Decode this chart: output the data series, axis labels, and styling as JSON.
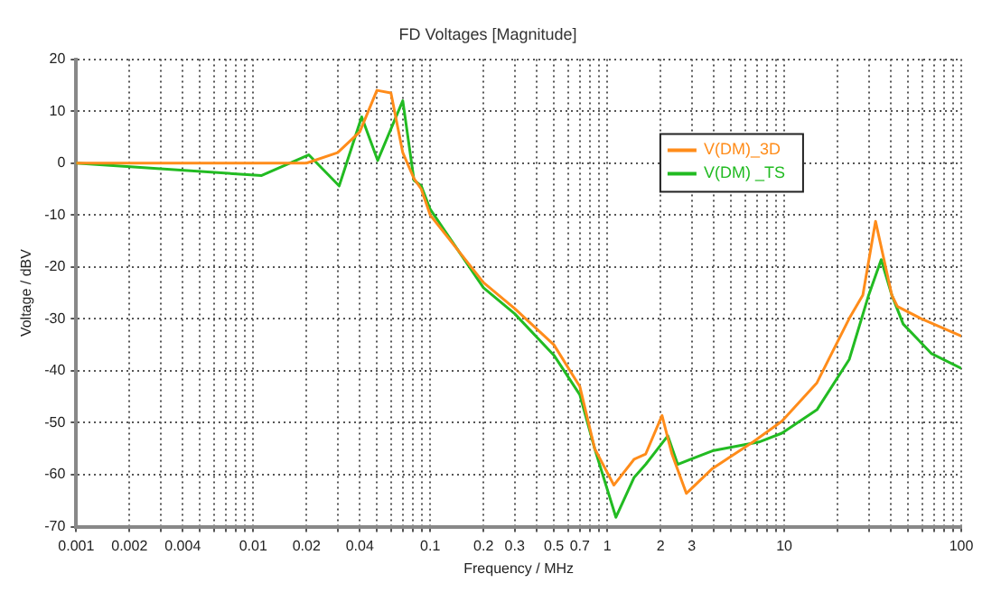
{
  "chart_data": {
    "type": "line",
    "title": "FD Voltages [Magnitude]",
    "xlabel": "Frequency / MHz",
    "ylabel": "Voltage / dBV",
    "log": "x",
    "grid": true,
    "legend": "top right",
    "marker": "none",
    "line_style": "solid",
    "xlim": [
      0.001,
      100
    ],
    "ylim": [
      -70,
      20
    ],
    "xticks": [
      0.001,
      0.002,
      {
        "value": 0.003,
        "label": null
      },
      0.004,
      {
        "value": 0.005,
        "label": null
      },
      {
        "value": 0.006,
        "label": null
      },
      {
        "value": 0.007,
        "label": null
      },
      {
        "value": 0.008,
        "label": null
      },
      {
        "value": 0.009,
        "label": null
      },
      0.01,
      0.02,
      {
        "value": 0.03,
        "label": null
      },
      0.04,
      {
        "value": 0.05,
        "label": null
      },
      {
        "value": 0.06,
        "label": null
      },
      {
        "value": 0.07,
        "label": null
      },
      {
        "value": 0.08,
        "label": null
      },
      {
        "value": 0.09,
        "label": null
      },
      0.1,
      0.2,
      0.3,
      {
        "value": 0.4,
        "label": null
      },
      0.5,
      {
        "value": 0.6,
        "label": null
      },
      0.7,
      {
        "value": 0.8,
        "label": null
      },
      {
        "value": 0.9,
        "label": null
      },
      1,
      2,
      3,
      {
        "value": 4,
        "label": null
      },
      {
        "value": 5,
        "label": null
      },
      {
        "value": 6,
        "label": null
      },
      {
        "value": 7,
        "label": null
      },
      {
        "value": 8,
        "label": null
      },
      {
        "value": 9,
        "label": null
      },
      10,
      {
        "value": 20,
        "label": null
      },
      {
        "value": 30,
        "label": null
      },
      {
        "value": 40,
        "label": null
      },
      {
        "value": 50,
        "label": null
      },
      {
        "value": 60,
        "label": null
      },
      {
        "value": 70,
        "label": null
      },
      {
        "value": 80,
        "label": null
      },
      {
        "value": 90,
        "label": null
      },
      100
    ],
    "yticks": [
      -70,
      -60,
      -50,
      -40,
      -30,
      -20,
      -10,
      0,
      10,
      20
    ],
    "series": [
      {
        "name": "V(DM)_3D",
        "color": "#ff8c1a",
        "x": [
          0.001,
          0.02,
          0.03,
          0.04,
          0.05,
          0.06,
          0.07,
          0.081,
          0.089,
          0.1,
          0.2,
          0.3,
          0.5,
          0.7,
          0.85,
          1.09,
          1.42,
          1.65,
          2.04,
          2.32,
          2.8,
          3.93,
          6.66,
          9.7,
          15.3,
          23.3,
          27.8,
          32.8,
          40.5,
          43.6,
          59,
          100
        ],
        "values": [
          0,
          0,
          2,
          6,
          14,
          13.5,
          2,
          -3,
          -5,
          -10,
          -23,
          -28,
          -35,
          -43,
          -55,
          -62,
          -57,
          -56,
          -48.6,
          -56,
          -63.6,
          -58.8,
          -53.7,
          -49.7,
          -42.3,
          -29.9,
          -25.4,
          -11.2,
          -25.4,
          -27.6,
          -29.9,
          -33.3
        ]
      },
      {
        "name": "V(DM) _TS",
        "color": "#22bb22",
        "x": [
          0.001,
          0.0111,
          0.0206,
          0.0306,
          0.041,
          0.0505,
          0.07,
          0.081,
          0.089,
          0.1,
          0.2,
          0.3,
          0.5,
          0.7,
          0.85,
          1.12,
          1.42,
          1.65,
          2.2,
          2.5,
          3.93,
          7.2,
          9.7,
          15.3,
          23.3,
          30,
          35.3,
          40.5,
          47,
          68,
          100
        ],
        "values": [
          0,
          -2.4,
          1.6,
          -4.4,
          8.9,
          0.5,
          12,
          -3.3,
          -4.4,
          -8.9,
          -24,
          -29,
          -37,
          -44.6,
          -55,
          -68.2,
          -60.5,
          -58,
          -52.5,
          -58,
          -55.4,
          -53.7,
          -52,
          -47.5,
          -37.8,
          -25.4,
          -18.6,
          -25.4,
          -31,
          -36.7,
          -39.5
        ]
      }
    ]
  }
}
